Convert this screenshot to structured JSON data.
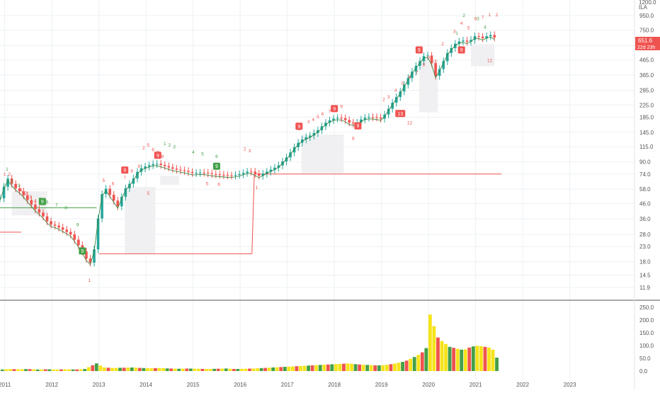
{
  "header": {
    "unit": "ILA",
    "scale_top": "1200.0"
  },
  "price_label": {
    "value": "651.6",
    "countdown": "22d 23h"
  },
  "colors": {
    "up": "#26a69a",
    "down": "#ef5350",
    "accent_line": "#ef5350",
    "setup_green": "#43a047",
    "setup_red": "#ef5350",
    "vol_yellow": "#f5e31a"
  },
  "chart_data": [
    {
      "type": "candlestick",
      "title": "",
      "scale": "log",
      "ylim": [
        10,
        1250
      ],
      "x_tick_labels": [
        "2011",
        "2012",
        "2013",
        "2014",
        "2015",
        "2016",
        "2017",
        "2018",
        "2019",
        "2020",
        "2021",
        "2022",
        "2023"
      ],
      "y_tick_labels": [
        "950.0",
        "750.0",
        "585.0",
        "465.0",
        "365.0",
        "285.0",
        "225.0",
        "185.0",
        "145.0",
        "115.0",
        "90.0",
        "74.0",
        "58.0",
        "46.0",
        "36.0",
        "28.0",
        "23.0",
        "18.0",
        "14.5",
        "11.9"
      ],
      "close_path": [
        [
          2010.9,
          50
        ],
        [
          2011.05,
          70
        ],
        [
          2011.2,
          60
        ],
        [
          2011.35,
          55
        ],
        [
          2011.5,
          48
        ],
        [
          2011.65,
          42
        ],
        [
          2011.8,
          38
        ],
        [
          2011.95,
          33
        ],
        [
          2012.1,
          32
        ],
        [
          2012.25,
          30
        ],
        [
          2012.4,
          28
        ],
        [
          2012.55,
          24
        ],
        [
          2012.7,
          20
        ],
        [
          2012.8,
          17
        ],
        [
          2012.9,
          22
        ],
        [
          2013.0,
          40
        ],
        [
          2013.1,
          62
        ],
        [
          2013.25,
          52
        ],
        [
          2013.4,
          44
        ],
        [
          2013.55,
          58
        ],
        [
          2013.7,
          66
        ],
        [
          2013.85,
          80
        ],
        [
          2014.0,
          84
        ],
        [
          2014.2,
          88
        ],
        [
          2014.4,
          84
        ],
        [
          2014.6,
          80
        ],
        [
          2014.8,
          78
        ],
        [
          2015.0,
          75
        ],
        [
          2015.2,
          76
        ],
        [
          2015.4,
          74
        ],
        [
          2015.6,
          73
        ],
        [
          2015.8,
          72
        ],
        [
          2016.0,
          74
        ],
        [
          2016.2,
          78
        ],
        [
          2016.4,
          72
        ],
        [
          2016.6,
          78
        ],
        [
          2016.8,
          84
        ],
        [
          2017.0,
          98
        ],
        [
          2017.2,
          120
        ],
        [
          2017.35,
          132
        ],
        [
          2017.5,
          138
        ],
        [
          2017.65,
          150
        ],
        [
          2017.8,
          168
        ],
        [
          2017.95,
          180
        ],
        [
          2018.1,
          184
        ],
        [
          2018.2,
          180
        ],
        [
          2018.3,
          170
        ],
        [
          2018.45,
          166
        ],
        [
          2018.6,
          182
        ],
        [
          2018.75,
          186
        ],
        [
          2018.9,
          184
        ],
        [
          2019.0,
          180
        ],
        [
          2019.1,
          200
        ],
        [
          2019.25,
          238
        ],
        [
          2019.4,
          280
        ],
        [
          2019.55,
          340
        ],
        [
          2019.7,
          410
        ],
        [
          2019.85,
          470
        ],
        [
          2019.95,
          520
        ],
        [
          2020.05,
          460
        ],
        [
          2020.15,
          360
        ],
        [
          2020.25,
          410
        ],
        [
          2020.4,
          520
        ],
        [
          2020.55,
          600
        ],
        [
          2020.7,
          640
        ],
        [
          2020.85,
          620
        ],
        [
          2021.0,
          690
        ],
        [
          2021.15,
          660
        ],
        [
          2021.3,
          700
        ],
        [
          2021.45,
          651.6
        ]
      ],
      "setup_counts_red": [
        [
          "1",
          2011.0,
          72
        ],
        [
          "2",
          2011.1,
          72
        ],
        [
          "1",
          2011.35,
          56
        ],
        [
          "2",
          2011.45,
          53
        ],
        [
          "3",
          2011.55,
          50
        ],
        [
          "4",
          2011.65,
          47
        ],
        [
          "5",
          2013.1,
          65
        ],
        [
          "6",
          2013.3,
          62
        ],
        [
          "7",
          2013.55,
          68
        ],
        [
          "8",
          2013.7,
          76
        ],
        [
          "9",
          2013.85,
          82
        ],
        [
          "2",
          2013.95,
          110
        ],
        [
          "5",
          2014.05,
          115
        ],
        [
          "6",
          2014.15,
          107
        ],
        [
          "7",
          2014.25,
          102
        ],
        [
          "8",
          2014.35,
          96
        ],
        [
          "2",
          2016.1,
          108
        ],
        [
          "3",
          2016.2,
          105
        ],
        [
          "5",
          2015.3,
          62
        ],
        [
          "6",
          2015.55,
          61
        ],
        [
          "1",
          2017.25,
          150
        ],
        [
          "3",
          2017.45,
          168
        ],
        [
          "4",
          2017.55,
          174
        ],
        [
          "5",
          2017.65,
          182
        ],
        [
          "6",
          2017.75,
          190
        ],
        [
          "7",
          2017.9,
          198
        ],
        [
          "8",
          2018.05,
          208
        ],
        [
          "9",
          2018.15,
          214
        ],
        [
          "2",
          2019.05,
          240
        ],
        [
          "3",
          2019.15,
          250
        ],
        [
          "4",
          2019.3,
          278
        ],
        [
          "5",
          2019.45,
          310
        ],
        [
          "6",
          2019.6,
          345
        ],
        [
          "7",
          2019.75,
          370
        ],
        [
          "8",
          2019.9,
          420
        ],
        [
          "9",
          2020.0,
          470
        ],
        [
          "2",
          2020.3,
          590
        ],
        [
          "3",
          2020.55,
          720
        ],
        [
          "4",
          2020.7,
          820
        ],
        [
          "5",
          2020.85,
          760
        ],
        [
          "6",
          2021.0,
          880
        ],
        [
          "7",
          2021.15,
          900
        ],
        [
          "1",
          2021.3,
          940
        ],
        [
          "2",
          2021.45,
          940
        ]
      ],
      "setup_counts_green": [
        [
          "1",
          2011.05,
          78
        ],
        [
          "2",
          2011.15,
          64
        ],
        [
          "3",
          2011.3,
          60
        ],
        [
          "5",
          2011.75,
          48
        ],
        [
          "6",
          2011.9,
          46
        ],
        [
          "7",
          2012.1,
          44
        ],
        [
          "8",
          2012.3,
          42
        ],
        [
          "9",
          2012.55,
          32
        ],
        [
          "1",
          2014.4,
          118
        ],
        [
          "2",
          2014.5,
          115
        ],
        [
          "3",
          2014.6,
          112
        ],
        [
          "4",
          2015.0,
          103
        ],
        [
          "5",
          2015.2,
          100
        ],
        [
          "6",
          2015.5,
          96
        ],
        [
          "9",
          2017.95,
          205
        ],
        [
          "1",
          2020.6,
          700
        ],
        [
          "2",
          2020.75,
          930
        ],
        [
          "3",
          2021.05,
          880
        ],
        [
          "4",
          2021.2,
          770
        ]
      ],
      "markers": [
        {
          "label": "9",
          "x": 2011.8,
          "y": 47,
          "color": "green"
        },
        {
          "label": "9",
          "x": 2012.65,
          "y": 21.2,
          "color": "green"
        },
        {
          "label": "9",
          "x": 2013.55,
          "y": 78,
          "color": "red"
        },
        {
          "label": "9",
          "x": 2014.25,
          "y": 99,
          "color": "red"
        },
        {
          "label": "9",
          "x": 2015.5,
          "y": 83,
          "color": "green"
        },
        {
          "label": "9",
          "x": 2018.0,
          "y": 210,
          "color": "red"
        },
        {
          "label": "9",
          "x": 2017.25,
          "y": 158,
          "color": "red"
        },
        {
          "label": "9",
          "x": 2018.5,
          "y": 159,
          "color": "red"
        },
        {
          "label": "13",
          "x": 2019.4,
          "y": 194,
          "color": "red"
        },
        {
          "label": "9",
          "x": 2019.8,
          "y": 540,
          "color": "red"
        },
        {
          "label": "9",
          "x": 2020.7,
          "y": 540,
          "color": "red"
        }
      ],
      "bottom_counts": [
        [
          "1",
          2012.8,
          13
        ],
        [
          "5",
          2014.05,
          53
        ],
        [
          "1",
          2016.35,
          58
        ],
        [
          "8",
          2018.4,
          128
        ],
        [
          "12",
          2019.6,
          165
        ],
        [
          "12",
          2021.3,
          450
        ]
      ],
      "levels": [
        {
          "y": 74,
          "x0": 2016.3,
          "x1": 2021.55,
          "color": "red"
        },
        {
          "y": 20.5,
          "x0": 2013.0,
          "x1": 2016.25,
          "color": "red"
        },
        {
          "y": 43,
          "x0": 2010.9,
          "x1": 2012.95,
          "color": "green"
        },
        {
          "y": 29,
          "x0": 2010.9,
          "x1": 2011.35,
          "color": "red"
        }
      ],
      "volume": {
        "ylim": [
          0,
          270
        ],
        "tick_labels": [
          "250.0",
          "200.0",
          "150.0",
          "100.0",
          "50.0",
          "0.0"
        ],
        "profile": [
          [
            2010.95,
            6
          ],
          [
            2011.1,
            8
          ],
          [
            2011.3,
            7
          ],
          [
            2011.5,
            8
          ],
          [
            2011.7,
            6
          ],
          [
            2011.9,
            7
          ],
          [
            2012.1,
            6
          ],
          [
            2012.3,
            7
          ],
          [
            2012.5,
            6
          ],
          [
            2012.7,
            8
          ],
          [
            2012.95,
            30
          ],
          [
            2013.1,
            14
          ],
          [
            2013.3,
            12
          ],
          [
            2013.5,
            13
          ],
          [
            2013.7,
            14
          ],
          [
            2013.9,
            12
          ],
          [
            2014.1,
            11
          ],
          [
            2014.3,
            12
          ],
          [
            2014.5,
            10
          ],
          [
            2014.7,
            9
          ],
          [
            2014.9,
            10
          ],
          [
            2015.1,
            9
          ],
          [
            2015.3,
            8
          ],
          [
            2015.5,
            9
          ],
          [
            2015.7,
            10
          ],
          [
            2015.9,
            8
          ],
          [
            2016.1,
            9
          ],
          [
            2016.3,
            10
          ],
          [
            2016.5,
            12
          ],
          [
            2016.7,
            14
          ],
          [
            2016.9,
            16
          ],
          [
            2017.1,
            18
          ],
          [
            2017.3,
            20
          ],
          [
            2017.5,
            22
          ],
          [
            2017.7,
            24
          ],
          [
            2017.9,
            26
          ],
          [
            2018.1,
            28
          ],
          [
            2018.3,
            30
          ],
          [
            2018.5,
            26
          ],
          [
            2018.7,
            24
          ],
          [
            2018.9,
            22
          ],
          [
            2019.1,
            24
          ],
          [
            2019.3,
            30
          ],
          [
            2019.5,
            38
          ],
          [
            2019.7,
            55
          ],
          [
            2019.85,
            70
          ],
          [
            2019.95,
            90
          ],
          [
            2020.05,
            248
          ],
          [
            2020.15,
            140
          ],
          [
            2020.3,
            115
          ],
          [
            2020.45,
            95
          ],
          [
            2020.6,
            88
          ],
          [
            2020.75,
            82
          ],
          [
            2020.9,
            95
          ],
          [
            2021.05,
            100
          ],
          [
            2021.2,
            95
          ],
          [
            2021.35,
            90
          ],
          [
            2021.47,
            45
          ]
        ]
      }
    }
  ]
}
